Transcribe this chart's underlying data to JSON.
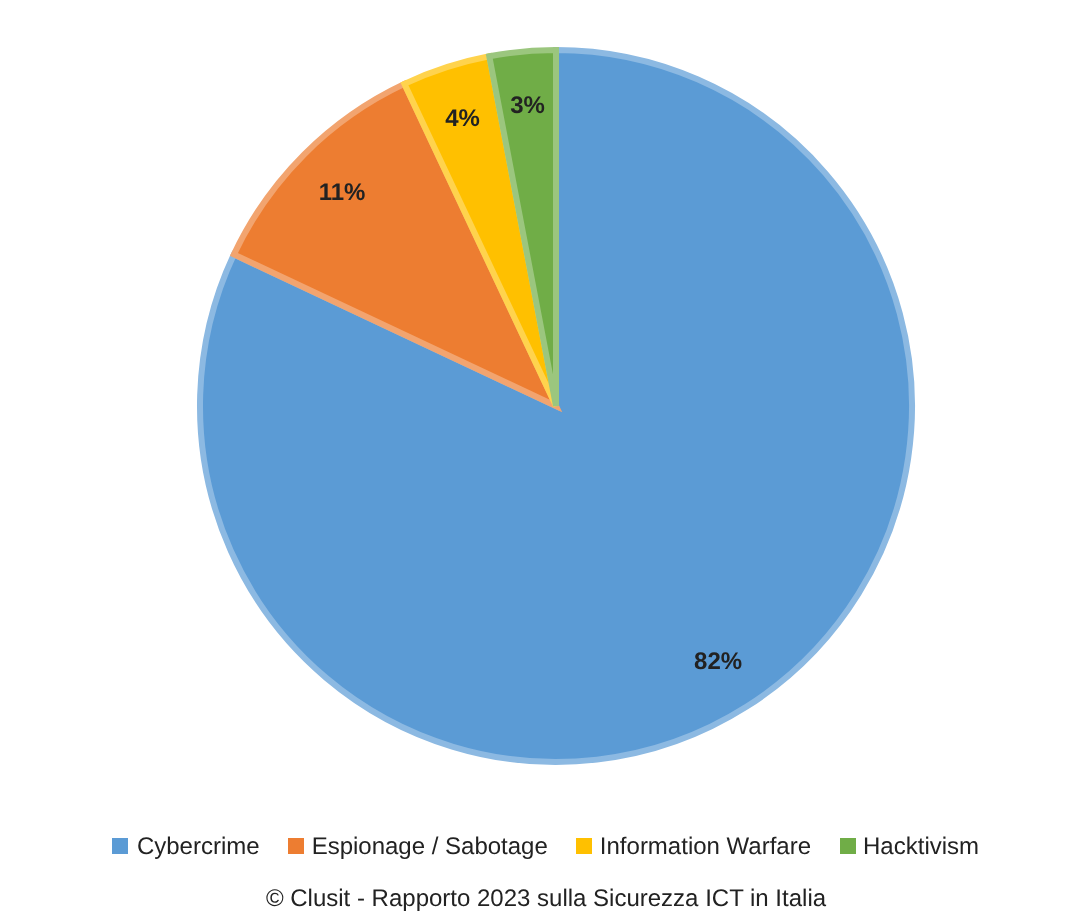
{
  "chart_data": {
    "type": "pie",
    "categories": [
      "Cybercrime",
      "Espionage / Sabotage",
      "Information Warfare",
      "Hacktivism"
    ],
    "values": [
      82,
      11,
      4,
      3
    ],
    "colors": [
      "#5b9bd5",
      "#ed7d31",
      "#ffc000",
      "#70ad47"
    ],
    "value_labels": [
      "82%",
      "11%",
      "4%",
      "3%"
    ],
    "legend": "bottom",
    "annotations": [
      "© Clusit - Rapporto 2023 sulla Sicurezza ICT in Italia"
    ]
  }
}
